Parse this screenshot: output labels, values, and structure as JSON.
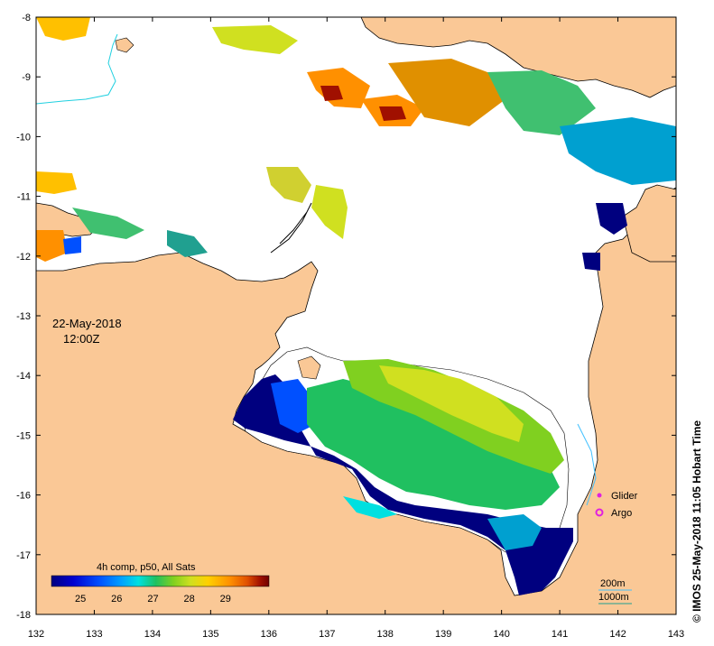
{
  "map": {
    "date": "22-May-2018",
    "time": "12:00Z",
    "credit": "©  IMOS 25-May-2018 11:05 Hobart Time",
    "x_ticks": [
      "132",
      "133",
      "134",
      "135",
      "136",
      "137",
      "138",
      "139",
      "140",
      "141",
      "142",
      "143"
    ],
    "y_ticks": [
      "-8",
      "-9",
      "-10",
      "-11",
      "-12",
      "-13",
      "-14",
      "-15",
      "-16",
      "-17",
      "-18"
    ],
    "legend": {
      "glider_label": "Glider",
      "argo_label": "Argo",
      "glider_color": "#e020e0",
      "argo_color": "#e020e0"
    },
    "contours": {
      "shallow_label": "200m",
      "deep_label": "1000m",
      "shallow_color": "#40c0ff",
      "deep_color": "#20a090"
    },
    "colorbar": {
      "title": "4h comp, p50, All Sats",
      "ticks": [
        "25",
        "26",
        "27",
        "28",
        "29"
      ],
      "min": 24.2,
      "max": 30.2,
      "colors": [
        "#00007f",
        "#0000d0",
        "#0050ff",
        "#00a0ff",
        "#00e0e0",
        "#20c060",
        "#80d020",
        "#d0e020",
        "#ffd000",
        "#ff9000",
        "#e05000",
        "#a01000",
        "#700000"
      ]
    },
    "colors": {
      "land": "#fac896",
      "ocean_nodata": "#ffffff",
      "river": "#20d0e0"
    }
  }
}
